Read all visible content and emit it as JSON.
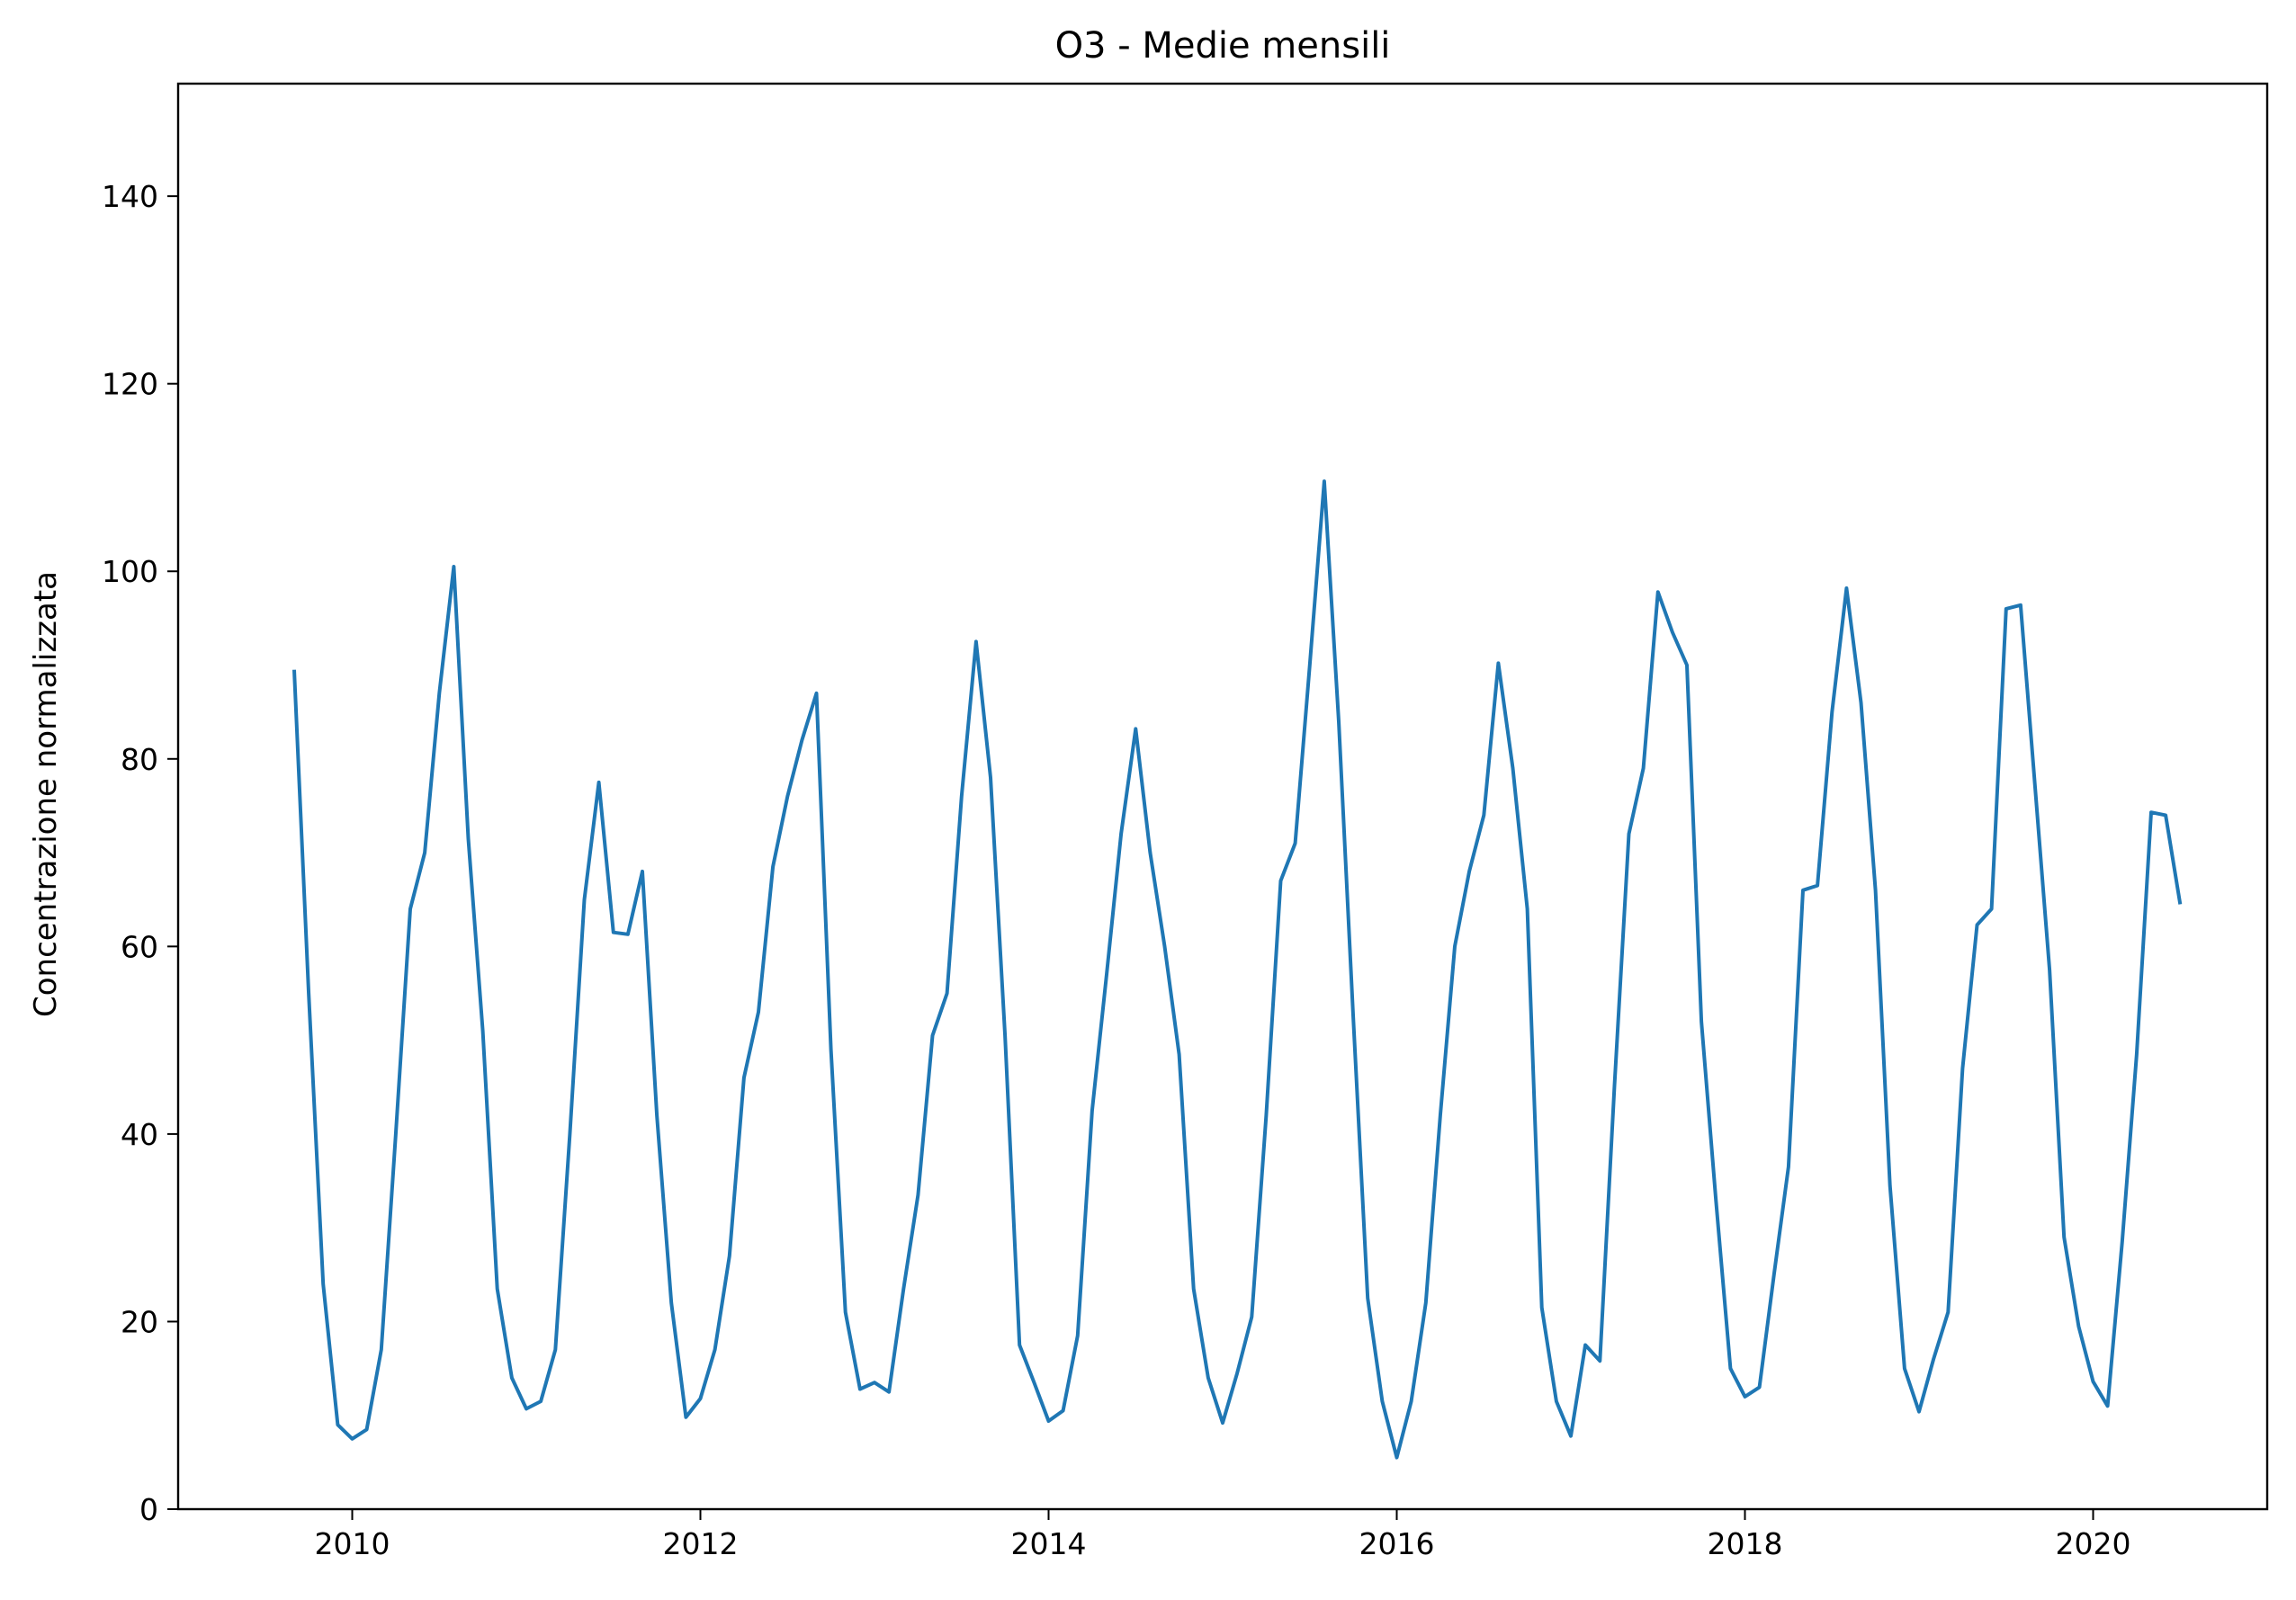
{
  "chart_data": {
    "type": "line",
    "title": "O3 - Medie mensili",
    "xlabel": "",
    "ylabel": "Concentrazione normalizzata",
    "ylim": [
      0,
      152
    ],
    "xlim": [
      "2009-01",
      "2021-01"
    ],
    "x_ticks": [
      "2010",
      "2012",
      "2014",
      "2016",
      "2018",
      "2020"
    ],
    "y_ticks": [
      "0",
      "20",
      "40",
      "60",
      "80",
      "100",
      "120",
      "140"
    ],
    "grid": false,
    "legend": "none",
    "series": [
      {
        "color": "#1f77b4",
        "x": [
          "2009-09",
          "2009-10",
          "2009-11",
          "2009-12",
          "2010-01",
          "2010-02",
          "2010-03",
          "2010-04",
          "2010-05",
          "2010-06",
          "2010-07",
          "2010-08",
          "2010-09",
          "2010-10",
          "2010-11",
          "2010-12",
          "2011-01",
          "2011-02",
          "2011-03",
          "2011-04",
          "2011-05",
          "2011-06",
          "2011-07",
          "2011-08",
          "2011-09",
          "2011-10",
          "2011-11",
          "2011-12",
          "2012-01",
          "2012-02",
          "2012-03",
          "2012-04",
          "2012-05",
          "2012-06",
          "2012-07",
          "2012-08",
          "2012-09",
          "2012-10",
          "2012-11",
          "2012-12",
          "2013-01",
          "2013-02",
          "2013-03",
          "2013-04",
          "2013-05",
          "2013-06",
          "2013-07",
          "2013-08",
          "2013-09",
          "2013-10",
          "2013-11",
          "2013-12",
          "2014-01",
          "2014-02",
          "2014-03",
          "2014-04",
          "2014-05",
          "2014-06",
          "2014-07",
          "2014-08",
          "2014-09",
          "2014-10",
          "2014-11",
          "2014-12",
          "2015-01",
          "2015-02",
          "2015-03",
          "2015-04",
          "2015-05",
          "2015-06",
          "2015-07",
          "2015-08",
          "2015-09",
          "2015-10",
          "2015-11",
          "2015-12",
          "2016-01",
          "2016-02",
          "2016-03",
          "2016-04",
          "2016-05",
          "2016-06",
          "2016-07",
          "2016-08",
          "2016-09",
          "2016-10",
          "2016-11",
          "2016-12",
          "2017-01",
          "2017-02",
          "2017-03",
          "2017-04",
          "2017-05",
          "2017-06",
          "2017-07",
          "2017-08",
          "2017-09",
          "2017-10",
          "2017-11",
          "2017-12",
          "2018-01",
          "2018-02",
          "2018-03",
          "2018-04",
          "2018-05",
          "2018-06",
          "2018-07",
          "2018-08",
          "2018-09",
          "2018-10",
          "2018-11",
          "2018-12",
          "2019-01",
          "2019-02",
          "2019-03",
          "2019-04",
          "2019-05",
          "2019-06",
          "2019-07",
          "2019-08",
          "2019-09",
          "2019-10",
          "2019-11",
          "2019-12",
          "2020-01",
          "2020-02",
          "2020-03",
          "2020-04",
          "2020-05",
          "2020-06",
          "2020-07"
        ],
        "values": [
          89.5,
          55,
          24,
          9,
          7.5,
          8.5,
          17,
          40,
          64,
          70,
          87,
          100.5,
          71.5,
          51,
          23.5,
          14,
          10.7,
          11.5,
          17,
          40,
          65,
          77.5,
          61.5,
          61.3,
          68,
          42,
          22,
          9.8,
          11.8,
          17,
          27,
          46,
          53,
          68.5,
          76,
          82,
          87,
          49,
          21,
          12.8,
          13.5,
          12.5,
          23.5,
          33.5,
          50.5,
          55,
          76,
          92.5,
          78,
          50.5,
          17.5,
          13.5,
          9.4,
          10.5,
          18.5,
          42.5,
          57,
          72,
          83.2,
          70,
          60,
          48.5,
          23.5,
          14,
          9.2,
          14.5,
          20.5,
          42,
          67,
          71,
          90,
          109.6,
          84,
          52.5,
          22.5,
          11.5,
          5.5,
          11.5,
          22,
          42,
          60,
          68,
          74,
          90.2,
          79,
          64,
          21.5,
          11.5,
          7.8,
          17.5,
          15.8,
          45,
          72,
          79,
          97.8,
          93.5,
          90,
          52,
          33,
          15,
          12,
          13,
          25,
          36.5,
          66,
          66.5,
          85,
          98.2,
          86,
          66,
          34.5,
          15,
          10.4,
          16,
          21,
          47,
          62.3,
          64,
          96,
          96.4,
          77,
          57.5,
          29,
          19.5,
          13.6,
          11,
          28.5,
          48.5,
          74.3,
          74,
          64.5
        ]
      }
    ]
  }
}
